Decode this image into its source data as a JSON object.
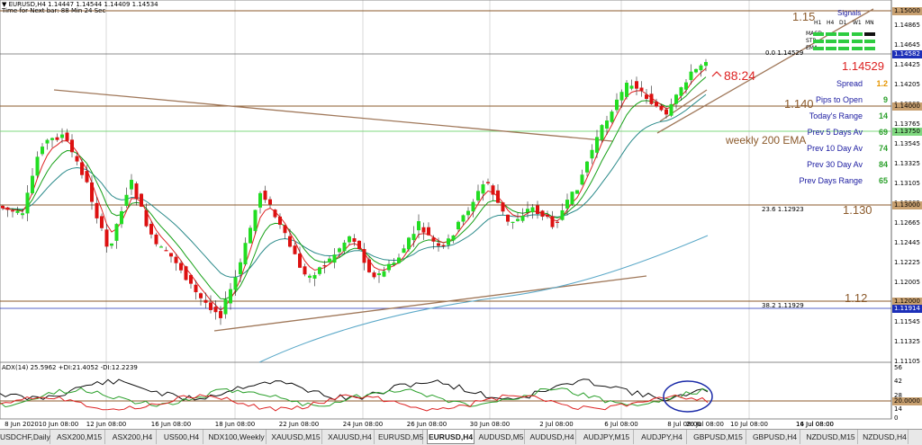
{
  "header": {
    "symbol_line": "▼ EURUSD,H4  1.14447 1.14544 1.14409 1.14534",
    "timer_line": "Time for Next bar: 88 Min 24 Sec"
  },
  "annotations": {
    "countdown": "88:24",
    "weekly_ema": "weekly 200 EMA",
    "level_115": "1.15",
    "level_114": "1.140",
    "level_113": "1.130",
    "level_112": "1.12",
    "fib0": "0.0  1.14529",
    "fib236": "23.6  1.12923",
    "fib382": "38.2  1.11929"
  },
  "signals": {
    "title": "Signals",
    "timeframes": [
      "H1",
      "H4",
      "D1",
      "W1",
      "MN"
    ],
    "rows": [
      {
        "name": "MACD",
        "colors": [
          "#2ecc40",
          "#2ecc40",
          "#2ecc40",
          "#2ecc40",
          "#111111"
        ]
      },
      {
        "name": "STR",
        "colors": [
          "#2ecc40",
          "#2ecc40",
          "#2ecc40",
          "#2ecc40",
          "#2ecc40"
        ]
      },
      {
        "name": "EMA",
        "colors": [
          "#2ecc40",
          "#2ecc40",
          "#2ecc40",
          "#2ecc40",
          "#2ecc40"
        ]
      }
    ]
  },
  "stats": {
    "price": "1.14529",
    "rows": [
      {
        "label": "Spread",
        "value": "1.2",
        "color": "#e69500"
      },
      {
        "label": "Pips to Open",
        "value": "9",
        "color": "#2ca02c"
      },
      {
        "label": "Today's Range",
        "value": "14",
        "color": "#2ca02c"
      },
      {
        "label": "Prev 5 Days Av",
        "value": "69",
        "color": "#2ca02c"
      },
      {
        "label": "Prev 10 Day Av",
        "value": "74",
        "color": "#2ca02c"
      },
      {
        "label": "Prev 30 Day Av",
        "value": "84",
        "color": "#2ca02c"
      },
      {
        "label": "Prev Days Range",
        "value": "65",
        "color": "#2ca02c"
      }
    ]
  },
  "price_axis": {
    "labels": [
      "1.14865",
      "1.14645",
      "1.14425",
      "1.14205",
      "1.13985",
      "1.13765",
      "1.13545",
      "1.13325",
      "1.13105",
      "1.12885",
      "1.12665",
      "1.12445",
      "1.12225",
      "1.12005",
      "1.11765",
      "1.11545",
      "1.11325",
      "1.11105"
    ],
    "tags": [
      {
        "text": "1.15000",
        "bg": "#c8a070",
        "fg": "#000000"
      },
      {
        "text": "1.14582",
        "bg": "#1c2fb8",
        "fg": "#ffffff"
      },
      {
        "text": "1.14000",
        "bg": "#c8a070",
        "fg": "#000000"
      },
      {
        "text": "1.13750",
        "bg": "#7fd87f",
        "fg": "#000000"
      },
      {
        "text": "1.13000",
        "bg": "#c8a070",
        "fg": "#000000"
      },
      {
        "text": "1.12000",
        "bg": "#c8a070",
        "fg": "#000000"
      },
      {
        "text": "1.11914",
        "bg": "#1c2fb8",
        "fg": "#ffffff"
      }
    ]
  },
  "indicator": {
    "label": "ADX(14) 25.5962 +DI:21.4052 -DI:12.2239",
    "scale": [
      "56",
      "42",
      "28",
      "14",
      "0"
    ],
    "tag": "20.0000"
  },
  "time_axis": [
    "8 Jun 2020",
    "10 Jun 08:00",
    "12 Jun 08:00",
    "16 Jun 08:00",
    "18 Jun 08:00",
    "22 Jun 08:00",
    "24 Jun 08:00",
    "26 Jun 08:00",
    "30 Jun 08:00",
    "2 Jul 08:00",
    "6 Jul 08:00",
    "8 Jul 08:00",
    "10 Jul 08:00",
    "14 Jul 08:00",
    "16 Jul 08:00",
    "20 Jul 08:00"
  ],
  "tabs": [
    "USDCHF,Daily",
    "ASX200,M15",
    "ASX200,H4",
    "US500,H4",
    "NDX100,Weekly",
    "XAUUSD,M15",
    "XAUUSD,H4",
    "EURUSD,M5",
    "EURUSD,H4",
    "AUDUSD,M5",
    "AUDUSD,H4",
    "AUDJPY,M15",
    "AUDJPY,H4",
    "GBPUSD,M15",
    "GBPUSD,H4",
    "NZDUSD,M15",
    "NZDUSD,H4"
  ],
  "active_tab": "EURUSD,H4",
  "colors": {
    "bull": "#22dd22",
    "bear": "#dd1111",
    "level_line": "#8b5a2b",
    "ema_fast": "#d22",
    "ema_mid": "#16a016",
    "ema_slow": "#2a8a8a",
    "ema_200": "#5aa8c8"
  }
}
